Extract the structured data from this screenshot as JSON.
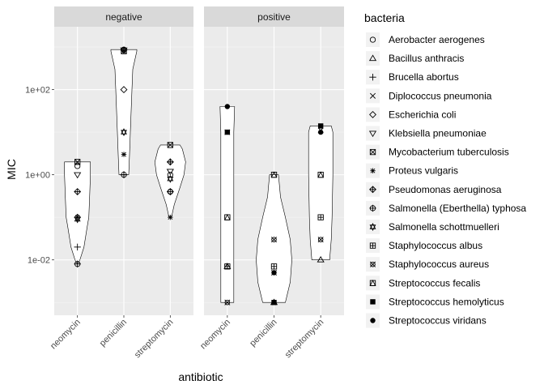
{
  "chart_data": {
    "type": "violin",
    "xlabel": "antibiotic",
    "ylabel": "MIC",
    "y_scale": "log10",
    "ylim": [
      0.0005,
      3000
    ],
    "y_ticks": [
      {
        "value": 0.01,
        "label": "1e-02"
      },
      {
        "value": 1,
        "label": "1e+00"
      },
      {
        "value": 100,
        "label": "1e+02"
      }
    ],
    "categories": [
      "neomycin",
      "penicillin",
      "streptomycin"
    ],
    "facets": [
      "negative",
      "positive"
    ],
    "legend": {
      "title": "bacteria",
      "position": "right",
      "items": [
        {
          "name": "Aerobacter aerogenes",
          "shape": "circle-open"
        },
        {
          "name": "Bacillus anthracis",
          "shape": "triangle-open"
        },
        {
          "name": "Brucella abortus",
          "shape": "plus"
        },
        {
          "name": "Diplococcus pneumonia",
          "shape": "cross"
        },
        {
          "name": "Escherichia coli",
          "shape": "diamond-open"
        },
        {
          "name": "Klebsiella pneumoniae",
          "shape": "triangle-down-open"
        },
        {
          "name": "Mycobacterium tuberculosis",
          "shape": "square-cross"
        },
        {
          "name": "Proteus vulgaris",
          "shape": "asterisk"
        },
        {
          "name": "Pseudomonas aeruginosa",
          "shape": "diamond-plus"
        },
        {
          "name": "Salmonella (Eberthella) typhosa",
          "shape": "circle-plus"
        },
        {
          "name": "Salmonella schottmuelleri",
          "shape": "triangles-updown"
        },
        {
          "name": "Staphylococcus albus",
          "shape": "square-plus"
        },
        {
          "name": "Staphylococcus aureus",
          "shape": "circle-cross"
        },
        {
          "name": "Streptococcus fecalis",
          "shape": "square-triangle"
        },
        {
          "name": "Streptococcus hemolyticus",
          "shape": "square-filled"
        },
        {
          "name": "Streptococcus viridans",
          "shape": "circle-filled"
        }
      ]
    },
    "points": [
      {
        "facet": "negative",
        "antibiotic": "neomycin",
        "bacteria": "Aerobacter aerogenes",
        "mic": 1.6
      },
      {
        "facet": "negative",
        "antibiotic": "penicillin",
        "bacteria": "Aerobacter aerogenes",
        "mic": 870
      },
      {
        "facet": "negative",
        "antibiotic": "streptomycin",
        "bacteria": "Aerobacter aerogenes",
        "mic": 1
      },
      {
        "facet": "negative",
        "antibiotic": "neomycin",
        "bacteria": "Brucella abortus",
        "mic": 0.02
      },
      {
        "facet": "negative",
        "antibiotic": "penicillin",
        "bacteria": "Brucella abortus",
        "mic": 1
      },
      {
        "facet": "negative",
        "antibiotic": "streptomycin",
        "bacteria": "Brucella abortus",
        "mic": 2
      },
      {
        "facet": "negative",
        "antibiotic": "neomycin",
        "bacteria": "Escherichia coli",
        "mic": 0.1
      },
      {
        "facet": "negative",
        "antibiotic": "penicillin",
        "bacteria": "Escherichia coli",
        "mic": 100
      },
      {
        "facet": "negative",
        "antibiotic": "streptomycin",
        "bacteria": "Escherichia coli",
        "mic": 0.4
      },
      {
        "facet": "negative",
        "antibiotic": "neomycin",
        "bacteria": "Klebsiella pneumoniae",
        "mic": 1
      },
      {
        "facet": "negative",
        "antibiotic": "penicillin",
        "bacteria": "Klebsiella pneumoniae",
        "mic": 850
      },
      {
        "facet": "negative",
        "antibiotic": "streptomycin",
        "bacteria": "Klebsiella pneumoniae",
        "mic": 1.2
      },
      {
        "facet": "negative",
        "antibiotic": "neomycin",
        "bacteria": "Mycobacterium tuberculosis",
        "mic": 2
      },
      {
        "facet": "negative",
        "antibiotic": "penicillin",
        "bacteria": "Mycobacterium tuberculosis",
        "mic": 800
      },
      {
        "facet": "negative",
        "antibiotic": "streptomycin",
        "bacteria": "Mycobacterium tuberculosis",
        "mic": 5
      },
      {
        "facet": "negative",
        "antibiotic": "neomycin",
        "bacteria": "Proteus vulgaris",
        "mic": 0.1
      },
      {
        "facet": "negative",
        "antibiotic": "penicillin",
        "bacteria": "Proteus vulgaris",
        "mic": 3
      },
      {
        "facet": "negative",
        "antibiotic": "streptomycin",
        "bacteria": "Proteus vulgaris",
        "mic": 0.1
      },
      {
        "facet": "negative",
        "antibiotic": "neomycin",
        "bacteria": "Pseudomonas aeruginosa",
        "mic": 0.4
      },
      {
        "facet": "negative",
        "antibiotic": "penicillin",
        "bacteria": "Pseudomonas aeruginosa",
        "mic": 850
      },
      {
        "facet": "negative",
        "antibiotic": "streptomycin",
        "bacteria": "Pseudomonas aeruginosa",
        "mic": 2
      },
      {
        "facet": "negative",
        "antibiotic": "neomycin",
        "bacteria": "Salmonella (Eberthella) typhosa",
        "mic": 0.008
      },
      {
        "facet": "negative",
        "antibiotic": "penicillin",
        "bacteria": "Salmonella (Eberthella) typhosa",
        "mic": 1
      },
      {
        "facet": "negative",
        "antibiotic": "streptomycin",
        "bacteria": "Salmonella (Eberthella) typhosa",
        "mic": 0.4
      },
      {
        "facet": "negative",
        "antibiotic": "neomycin",
        "bacteria": "Salmonella schottmuelleri",
        "mic": 0.09
      },
      {
        "facet": "negative",
        "antibiotic": "penicillin",
        "bacteria": "Salmonella schottmuelleri",
        "mic": 10
      },
      {
        "facet": "negative",
        "antibiotic": "streptomycin",
        "bacteria": "Salmonella schottmuelleri",
        "mic": 0.8
      },
      {
        "facet": "positive",
        "antibiotic": "neomycin",
        "bacteria": "Bacillus anthracis",
        "mic": 0.007
      },
      {
        "facet": "positive",
        "antibiotic": "penicillin",
        "bacteria": "Bacillus anthracis",
        "mic": 0.001
      },
      {
        "facet": "positive",
        "antibiotic": "streptomycin",
        "bacteria": "Bacillus anthracis",
        "mic": 0.01
      },
      {
        "facet": "positive",
        "antibiotic": "neomycin",
        "bacteria": "Diplococcus pneumonia",
        "mic": 10
      },
      {
        "facet": "positive",
        "antibiotic": "penicillin",
        "bacteria": "Diplococcus pneumonia",
        "mic": 0.005
      },
      {
        "facet": "positive",
        "antibiotic": "streptomycin",
        "bacteria": "Diplococcus pneumonia",
        "mic": 11
      },
      {
        "facet": "positive",
        "antibiotic": "neomycin",
        "bacteria": "Staphylococcus albus",
        "mic": 0.007
      },
      {
        "facet": "positive",
        "antibiotic": "penicillin",
        "bacteria": "Staphylococcus albus",
        "mic": 0.007
      },
      {
        "facet": "positive",
        "antibiotic": "streptomycin",
        "bacteria": "Staphylococcus albus",
        "mic": 0.1
      },
      {
        "facet": "positive",
        "antibiotic": "neomycin",
        "bacteria": "Staphylococcus aureus",
        "mic": 0.001
      },
      {
        "facet": "positive",
        "antibiotic": "penicillin",
        "bacteria": "Staphylococcus aureus",
        "mic": 0.03
      },
      {
        "facet": "positive",
        "antibiotic": "streptomycin",
        "bacteria": "Staphylococcus aureus",
        "mic": 0.03
      },
      {
        "facet": "positive",
        "antibiotic": "neomycin",
        "bacteria": "Streptococcus fecalis",
        "mic": 0.1
      },
      {
        "facet": "positive",
        "antibiotic": "penicillin",
        "bacteria": "Streptococcus fecalis",
        "mic": 1
      },
      {
        "facet": "positive",
        "antibiotic": "streptomycin",
        "bacteria": "Streptococcus fecalis",
        "mic": 1
      },
      {
        "facet": "positive",
        "antibiotic": "neomycin",
        "bacteria": "Streptococcus hemolyticus",
        "mic": 10
      },
      {
        "facet": "positive",
        "antibiotic": "penicillin",
        "bacteria": "Streptococcus hemolyticus",
        "mic": 0.001
      },
      {
        "facet": "positive",
        "antibiotic": "streptomycin",
        "bacteria": "Streptococcus hemolyticus",
        "mic": 14
      },
      {
        "facet": "positive",
        "antibiotic": "neomycin",
        "bacteria": "Streptococcus viridans",
        "mic": 40
      },
      {
        "facet": "positive",
        "antibiotic": "penicillin",
        "bacteria": "Streptococcus viridans",
        "mic": 0.005
      },
      {
        "facet": "positive",
        "antibiotic": "streptomycin",
        "bacteria": "Streptococcus viridans",
        "mic": 10
      }
    ]
  }
}
